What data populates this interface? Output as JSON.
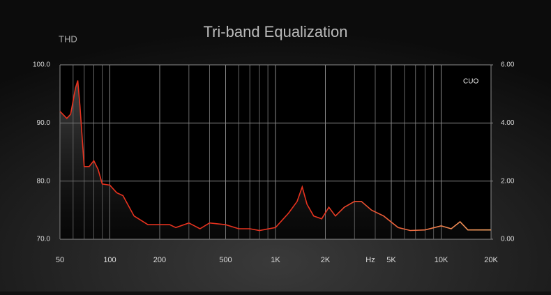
{
  "chart_data": {
    "type": "line",
    "title": "Tri-band Equalization",
    "y_label": "THD",
    "x_unit": "Hz",
    "log_x": true,
    "xlim": [
      50,
      20000
    ],
    "xticks": [
      50,
      100,
      200,
      500,
      {
        "value": 1000,
        "label": "1K"
      },
      {
        "value": 2000,
        "label": "2K"
      },
      {
        "value": 5000,
        "label": "5K"
      },
      {
        "value": 10000,
        "label": "10K"
      },
      {
        "value": 20000,
        "label": "20K"
      }
    ],
    "x_minor_ticks": [
      60,
      70,
      80,
      90,
      300,
      400,
      600,
      700,
      800,
      900,
      3000,
      4000,
      6000,
      7000,
      8000,
      9000
    ],
    "ylim": [
      70,
      100
    ],
    "yticks": [
      {
        "value": 70,
        "label": "70.0"
      },
      {
        "value": 80,
        "label": "80.0"
      },
      {
        "value": 90,
        "label": "90.0"
      },
      {
        "value": 100,
        "label": "100.0"
      }
    ],
    "y2lim": [
      0,
      6
    ],
    "y2ticks": [
      {
        "value": 0,
        "label": "0.00"
      },
      {
        "value": 2,
        "label": "2.00"
      },
      {
        "value": 4,
        "label": "4.00"
      },
      {
        "value": 6,
        "label": "6.00"
      }
    ],
    "grid": true,
    "legend": "top-right",
    "x": [
      50,
      55,
      58,
      62,
      64,
      66,
      70,
      75,
      80,
      85,
      90,
      100,
      110,
      120,
      140,
      170,
      200,
      230,
      250,
      300,
      350,
      400,
      500,
      600,
      700,
      800,
      1000,
      1200,
      1350,
      1450,
      1550,
      1700,
      1900,
      2100,
      2300,
      2600,
      3000,
      3300,
      3800,
      4500,
      5500,
      6500,
      8000,
      10000,
      11500,
      13000,
      14500,
      20000
    ],
    "series": [
      {
        "name": "CUO",
        "color": "#e8321e",
        "values": [
          92.0,
          90.8,
          91.5,
          96.0,
          97.3,
          93.0,
          82.5,
          82.5,
          83.5,
          82.0,
          79.5,
          79.3,
          78.0,
          77.5,
          74.0,
          72.5,
          72.5,
          72.5,
          72.0,
          72.8,
          71.8,
          72.8,
          72.5,
          71.8,
          71.8,
          71.5,
          72.0,
          74.5,
          76.5,
          79.0,
          76.0,
          74.0,
          73.5,
          75.5,
          74.0,
          75.5,
          76.5,
          76.5,
          75.0,
          74.0,
          72.0,
          71.5,
          71.6,
          72.3,
          71.8,
          73.0,
          71.6,
          71.6
        ]
      }
    ]
  }
}
